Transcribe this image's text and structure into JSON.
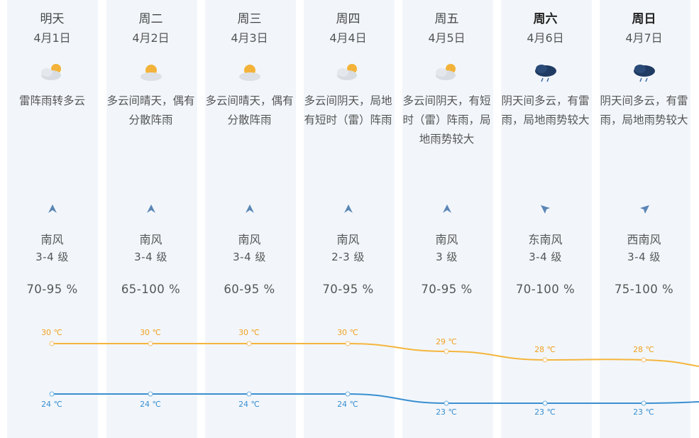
{
  "days": [
    {
      "day": "明天",
      "date": "4月1日",
      "icon": "thunder-cloud-sun-icon",
      "desc": "雷阵雨转多云",
      "wind_dir": "南风",
      "wind_arrow": "north-arrow-icon",
      "wind_lvl": "3-4 级",
      "humidity": "70-95 %",
      "high": "30 ℃",
      "low": "24 ℃",
      "bold": false
    },
    {
      "day": "周二",
      "date": "4月2日",
      "icon": "sun-cloud-rain-icon",
      "desc": "多云间晴天，偶有分散阵雨",
      "wind_dir": "南风",
      "wind_arrow": "north-arrow-icon",
      "wind_lvl": "3-4 级",
      "humidity": "65-100 %",
      "high": "30 ℃",
      "low": "24 ℃",
      "bold": false
    },
    {
      "day": "周三",
      "date": "4月3日",
      "icon": "sun-cloud-rain-icon",
      "desc": "多云间晴天，偶有分散阵雨",
      "wind_dir": "南风",
      "wind_arrow": "north-arrow-icon",
      "wind_lvl": "3-4 级",
      "humidity": "60-95 %",
      "high": "30 ℃",
      "low": "24 ℃",
      "bold": false
    },
    {
      "day": "周四",
      "date": "4月4日",
      "icon": "cloud-sun-rain-icon",
      "desc": "多云间阴天，局地有短时（雷）阵雨",
      "wind_dir": "南风",
      "wind_arrow": "north-arrow-icon",
      "wind_lvl": "2-3 级",
      "humidity": "70-95 %",
      "high": "30 ℃",
      "low": "24 ℃",
      "bold": false
    },
    {
      "day": "周五",
      "date": "4月5日",
      "icon": "cloud-sun-rain-icon",
      "desc": "多云间阴天，有短时（雷）阵雨，局地雨势较大",
      "wind_dir": "南风",
      "wind_arrow": "north-arrow-icon",
      "wind_lvl": "3 级",
      "humidity": "70-95 %",
      "high": "29 ℃",
      "low": "23 ℃",
      "bold": false
    },
    {
      "day": "周六",
      "date": "4月6日",
      "icon": "dark-rain-cloud-icon",
      "desc": "阴天间多云，有雷雨，局地雨势较大",
      "wind_dir": "东南风",
      "wind_arrow": "northwest-arrow-icon",
      "wind_lvl": "3-4 级",
      "humidity": "70-100 %",
      "high": "28 ℃",
      "low": "23 ℃",
      "bold": true
    },
    {
      "day": "周日",
      "date": "4月7日",
      "icon": "dark-rain-cloud-icon",
      "desc": "阴天间多云，有雷雨，局地雨势较大",
      "wind_dir": "西南风",
      "wind_arrow": "northeast-arrow-icon",
      "wind_lvl": "3-4 级",
      "humidity": "75-100 %",
      "high": "28 ℃",
      "low": "23 ℃",
      "bold": true
    }
  ],
  "colors": {
    "high_line": "#f5b53d",
    "low_line": "#3a8fd0",
    "label_high": "#f0a020",
    "label_low": "#3a8fd0"
  }
}
